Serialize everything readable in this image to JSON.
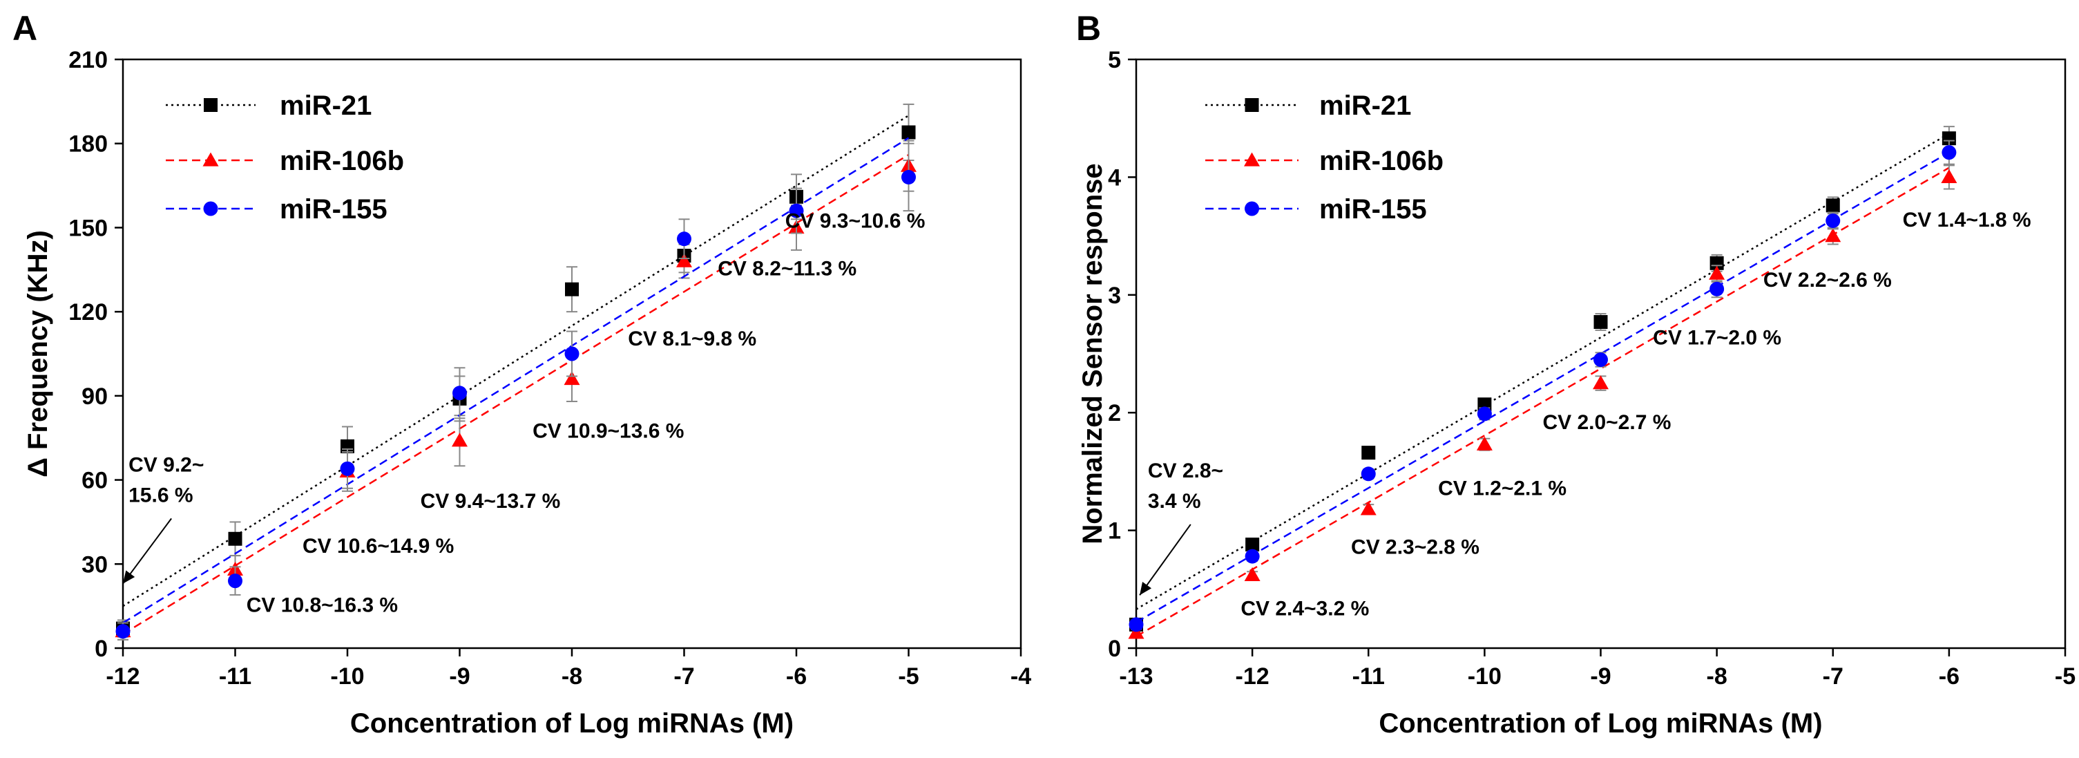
{
  "chart_data": [
    {
      "type": "scatter",
      "panel_label": "A",
      "xlabel": "Concentration of Log miRNAs (M)",
      "ylabel": "Δ Frequency (KHz)",
      "xlim": [
        -12,
        -4
      ],
      "ylim": [
        0,
        210
      ],
      "xticks": [
        -12,
        -11,
        -10,
        -9,
        -8,
        -7,
        -6,
        -5,
        -4
      ],
      "yticks": [
        0,
        30,
        60,
        90,
        120,
        150,
        180,
        210
      ],
      "grid": false,
      "legend_position": "top-left",
      "series": [
        {
          "name": "miR-21",
          "color": "#000000",
          "marker": "square",
          "line": "dotted",
          "x": [
            -12,
            -11,
            -10,
            -9,
            -8,
            -7,
            -6,
            -5
          ],
          "y": [
            7,
            39,
            72,
            89,
            128,
            140,
            161,
            184
          ],
          "err": [
            3,
            6,
            7,
            8,
            8,
            6,
            8,
            10
          ],
          "fit": [
            [
              -12,
              15
            ],
            [
              -5,
              190
            ]
          ]
        },
        {
          "name": "miR-106b",
          "color": "#ff0000",
          "marker": "triangle",
          "line": "dashed",
          "x": [
            -12,
            -11,
            -10,
            -9,
            -8,
            -7,
            -6,
            -5
          ],
          "y": [
            6,
            28,
            63,
            74,
            96,
            138,
            150,
            172
          ],
          "err": [
            3,
            5,
            7,
            9,
            8,
            6,
            8,
            9
          ],
          "fit": [
            [
              -12,
              5
            ],
            [
              -5,
              176
            ]
          ]
        },
        {
          "name": "miR-155",
          "color": "#0000ff",
          "marker": "circle",
          "line": "dashed",
          "x": [
            -12,
            -11,
            -10,
            -9,
            -8,
            -7,
            -6,
            -5
          ],
          "y": [
            6,
            24,
            64,
            91,
            105,
            146,
            156,
            168
          ],
          "err": [
            3,
            5,
            7,
            9,
            8,
            7,
            8,
            12
          ],
          "fit": [
            [
              -12,
              9
            ],
            [
              -5,
              182
            ]
          ]
        }
      ],
      "annotations": [
        {
          "lines": [
            "CV 9.2~",
            "15.6 %"
          ],
          "x": -11.95,
          "y": 63,
          "arrow_to": [
            -12,
            23
          ]
        },
        {
          "lines": [
            "CV 10.8~16.3 %"
          ],
          "x": -10.9,
          "y": 13
        },
        {
          "lines": [
            "CV 10.6~14.9 %"
          ],
          "x": -10.4,
          "y": 34
        },
        {
          "lines": [
            "CV 9.4~13.7 %"
          ],
          "x": -9.35,
          "y": 50
        },
        {
          "lines": [
            "CV 10.9~13.6 %"
          ],
          "x": -8.35,
          "y": 75
        },
        {
          "lines": [
            "CV 8.1~9.8 %"
          ],
          "x": -7.5,
          "y": 108
        },
        {
          "lines": [
            "CV 8.2~11.3 %"
          ],
          "x": -6.7,
          "y": 133
        },
        {
          "lines": [
            "CV 9.3~10.6 %"
          ],
          "x": -6.1,
          "y": 150
        }
      ]
    },
    {
      "type": "scatter",
      "panel_label": "B",
      "xlabel": "Concentration of Log miRNAs (M)",
      "ylabel": "Normalized Sensor response",
      "xlim": [
        -13,
        -5
      ],
      "ylim": [
        0,
        5
      ],
      "xticks": [
        -13,
        -12,
        -11,
        -10,
        -9,
        -8,
        -7,
        -6,
        -5
      ],
      "yticks": [
        0,
        1,
        2,
        3,
        4,
        5
      ],
      "grid": false,
      "legend_position": "top-left",
      "series": [
        {
          "name": "miR-21",
          "color": "#000000",
          "marker": "square",
          "line": "dotted",
          "x": [
            -13,
            -12,
            -11,
            -10,
            -9,
            -8,
            -7,
            -6
          ],
          "y": [
            0.2,
            0.88,
            1.66,
            2.07,
            2.77,
            3.27,
            3.76,
            4.33
          ],
          "err": [
            0.03,
            0.04,
            0.04,
            0.05,
            0.07,
            0.07,
            0.07,
            0.1
          ],
          "fit": [
            [
              -13,
              0.33
            ],
            [
              -6,
              4.37
            ]
          ]
        },
        {
          "name": "miR-106b",
          "color": "#ff0000",
          "marker": "triangle",
          "line": "dashed",
          "x": [
            -13,
            -12,
            -11,
            -10,
            -9,
            -8,
            -7,
            -6
          ],
          "y": [
            0.13,
            0.62,
            1.18,
            1.73,
            2.25,
            3.18,
            3.5,
            4.0
          ],
          "err": [
            0.03,
            0.03,
            0.04,
            0.05,
            0.06,
            0.07,
            0.07,
            0.1
          ],
          "fit": [
            [
              -13,
              0.1
            ],
            [
              -6,
              4.08
            ]
          ]
        },
        {
          "name": "miR-155",
          "color": "#0000ff",
          "marker": "circle",
          "line": "dashed",
          "x": [
            -13,
            -12,
            -11,
            -10,
            -9,
            -8,
            -7,
            -6
          ],
          "y": [
            0.2,
            0.78,
            1.48,
            1.99,
            2.45,
            3.05,
            3.63,
            4.21
          ],
          "err": [
            0.03,
            0.04,
            0.04,
            0.05,
            0.06,
            0.07,
            0.07,
            0.1
          ],
          "fit": [
            [
              -13,
              0.22
            ],
            [
              -6,
              4.21
            ]
          ]
        }
      ],
      "annotations": [
        {
          "lines": [
            "CV 2.8~",
            "3.4 %"
          ],
          "x": -12.9,
          "y": 1.45,
          "arrow_to": [
            -12.97,
            0.45
          ]
        },
        {
          "lines": [
            "CV 2.4~3.2 %"
          ],
          "x": -12.1,
          "y": 0.28
        },
        {
          "lines": [
            "CV 2.3~2.8 %"
          ],
          "x": -11.15,
          "y": 0.8
        },
        {
          "lines": [
            "CV 1.2~2.1 %"
          ],
          "x": -10.4,
          "y": 1.3
        },
        {
          "lines": [
            "CV 2.0~2.7 %"
          ],
          "x": -9.5,
          "y": 1.86
        },
        {
          "lines": [
            "CV 1.7~2.0 %"
          ],
          "x": -8.55,
          "y": 2.58
        },
        {
          "lines": [
            "CV 2.2~2.6 %"
          ],
          "x": -7.6,
          "y": 3.07
        },
        {
          "lines": [
            "CV 1.4~1.8 %"
          ],
          "x": -6.4,
          "y": 3.58
        }
      ]
    }
  ]
}
